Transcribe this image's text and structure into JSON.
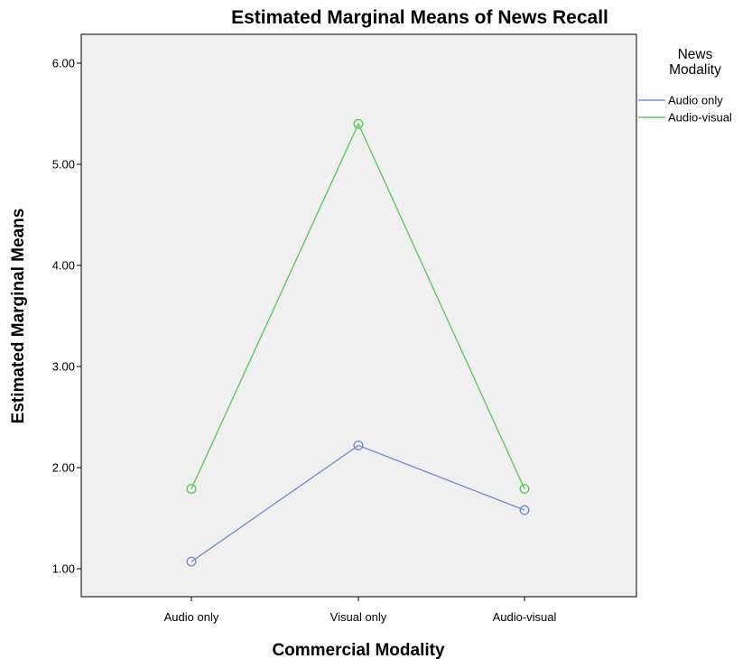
{
  "chart_data": {
    "type": "line",
    "title": "Estimated Marginal Means of News Recall",
    "xlabel": "Commercial Modality",
    "ylabel": "Estimated Marginal Means",
    "categories": [
      "Audio only",
      "Visual only",
      "Audio-visual"
    ],
    "ylim": [
      0.9,
      6.25
    ],
    "yticks": [
      "1.00",
      "2.00",
      "3.00",
      "4.00",
      "5.00",
      "6.00"
    ],
    "grid": false,
    "legend": {
      "title_lines": [
        "News",
        "Modality"
      ],
      "placement": "right"
    },
    "series": [
      {
        "name": "Audio only",
        "color": "#7b8fce",
        "values": [
          1.07,
          2.22,
          1.58
        ]
      },
      {
        "name": "Audio-visual",
        "color": "#5fc95f",
        "values": [
          1.79,
          5.4,
          1.79
        ]
      }
    ],
    "plot_background": "#f0f0f0"
  }
}
